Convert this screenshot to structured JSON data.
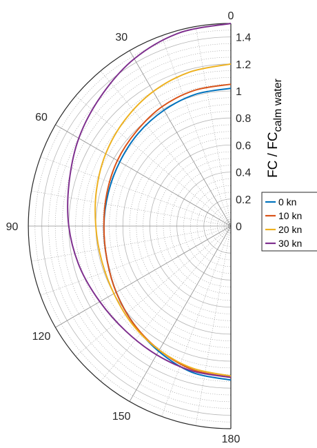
{
  "chart_data": {
    "type": "polar-line",
    "title": "",
    "ylabel_main": "FC / FC",
    "ylabel_sub": "calm water",
    "theta_ticks": [
      "0",
      "30",
      "60",
      "90",
      "120",
      "150",
      "180"
    ],
    "theta_values": [
      0,
      30,
      60,
      90,
      120,
      150,
      180
    ],
    "r_ticks": [
      "0",
      "0.2",
      "0.4",
      "0.6",
      "0.8",
      "1",
      "1.2",
      "1.4"
    ],
    "r_values": [
      0,
      0.2,
      0.4,
      0.6,
      0.8,
      1.0,
      1.2,
      1.4
    ],
    "rlim": [
      0,
      1.5
    ],
    "theta_range": [
      0,
      180
    ],
    "grid": true,
    "legend_position": "right",
    "angles": [
      0,
      15,
      30,
      45,
      60,
      75,
      90,
      105,
      120,
      135,
      150,
      165,
      180
    ],
    "series": [
      {
        "name": "0 kn",
        "color": "#0072BD",
        "values": [
          1.02,
          1.01,
          0.99,
          0.97,
          0.95,
          0.94,
          0.94,
          0.95,
          0.98,
          1.02,
          1.07,
          1.12,
          1.14
        ]
      },
      {
        "name": "10 kn",
        "color": "#D95319",
        "values": [
          1.05,
          1.04,
          1.02,
          0.99,
          0.97,
          0.95,
          0.94,
          0.95,
          0.98,
          1.02,
          1.06,
          1.1,
          1.12
        ]
      },
      {
        "name": "20 kn",
        "color": "#EDB120",
        "values": [
          1.2,
          1.18,
          1.15,
          1.11,
          1.07,
          1.03,
          1.0,
          0.99,
          1.0,
          1.03,
          1.06,
          1.09,
          1.11
        ]
      },
      {
        "name": "30 kn",
        "color": "#7E2F8E",
        "values": [
          1.5,
          1.48,
          1.43,
          1.36,
          1.3,
          1.24,
          1.2,
          1.16,
          1.12,
          1.1,
          1.1,
          1.11,
          1.12
        ]
      }
    ]
  }
}
